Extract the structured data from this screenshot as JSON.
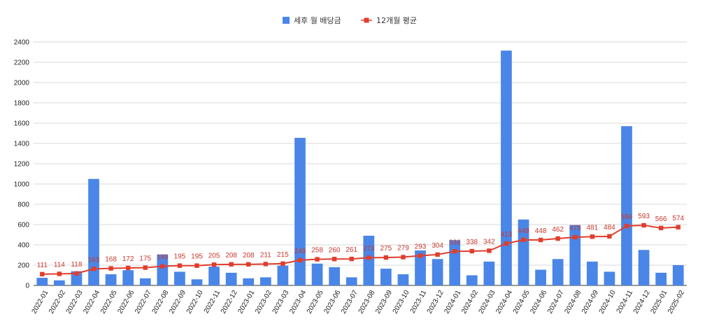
{
  "chart_data": {
    "type": "bar",
    "legend_position": "top-center",
    "grid": true,
    "ylim": [
      0,
      2400
    ],
    "yticks": [
      0,
      200,
      400,
      600,
      800,
      1000,
      1200,
      1400,
      1600,
      1800,
      2000,
      2200,
      2400
    ],
    "categories": [
      "2022-01",
      "2022-02",
      "2022-03",
      "2022-04",
      "2022-05",
      "2022-06",
      "2022-07",
      "2022-08",
      "2022-09",
      "2022-10",
      "2022-11",
      "2022-12",
      "2023-01",
      "2023-02",
      "2023-03",
      "2023-04",
      "2023-05",
      "2023-06",
      "2023-07",
      "2023-08",
      "2023-09",
      "2023-10",
      "2023-11",
      "2023-12",
      "2024-01",
      "2024-02",
      "2024-03",
      "2024-04",
      "2024-05",
      "2024-06",
      "2024-07",
      "2024-08",
      "2024-09",
      "2024-10",
      "2024-11",
      "2024-12",
      "2025-01",
      "2025-02"
    ],
    "series": [
      {
        "name": "세후 월 배당금",
        "type": "bar",
        "color": "#4a86e8",
        "values": [
          75,
          50,
          140,
          1050,
          110,
          150,
          70,
          305,
          135,
          60,
          185,
          125,
          70,
          80,
          195,
          1455,
          215,
          180,
          80,
          490,
          165,
          110,
          345,
          260,
          445,
          100,
          235,
          2315,
          650,
          155,
          260,
          595,
          235,
          135,
          1570,
          350,
          125,
          200
        ]
      },
      {
        "name": "12개월 평균",
        "type": "line",
        "color": "#e03e2d",
        "values": [
          111,
          114,
          118,
          163,
          168,
          172,
          175,
          189,
          195,
          195,
          205,
          208,
          208,
          211,
          215,
          249,
          258,
          260,
          261,
          273,
          275,
          279,
          293,
          304,
          336,
          338,
          342,
          413,
          449,
          448,
          462,
          475,
          481,
          484,
          586,
          593,
          566,
          574
        ]
      }
    ]
  }
}
